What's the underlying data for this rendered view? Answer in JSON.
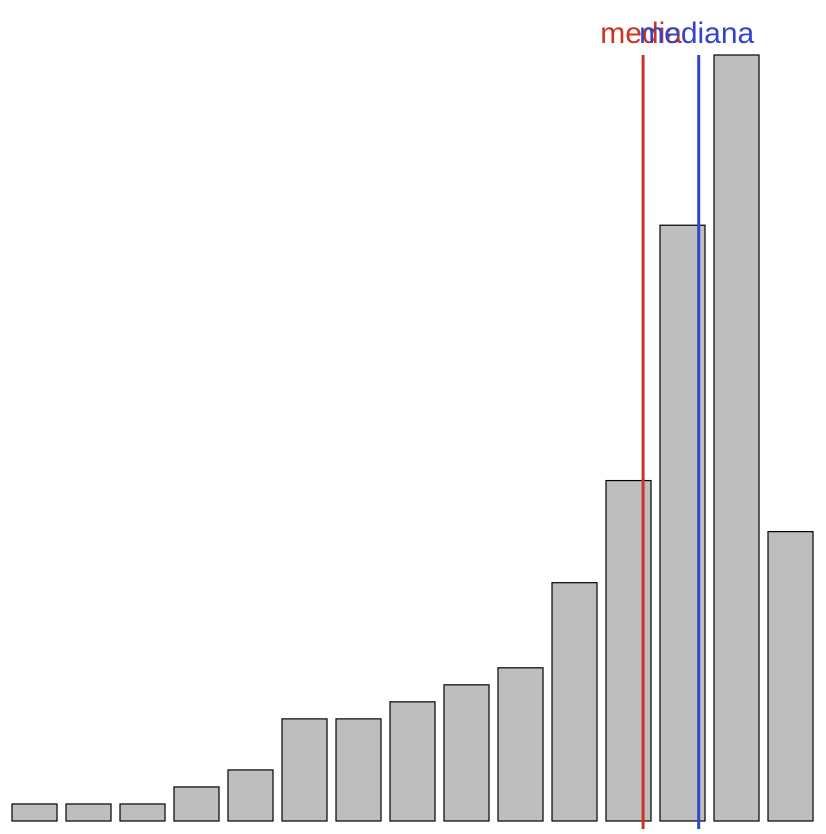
{
  "chart_data": {
    "type": "bar",
    "values": [
      1,
      1,
      1,
      2,
      3,
      6,
      6,
      7,
      8,
      9,
      14,
      20,
      35,
      45,
      17
    ],
    "ylim": [
      0,
      45
    ],
    "grid": false,
    "reference_lines": [
      {
        "label": "media",
        "position": 12.27,
        "color": "#cc3322"
      },
      {
        "label": "mediana",
        "position": 13.3,
        "color": "#3344cc"
      }
    ]
  }
}
